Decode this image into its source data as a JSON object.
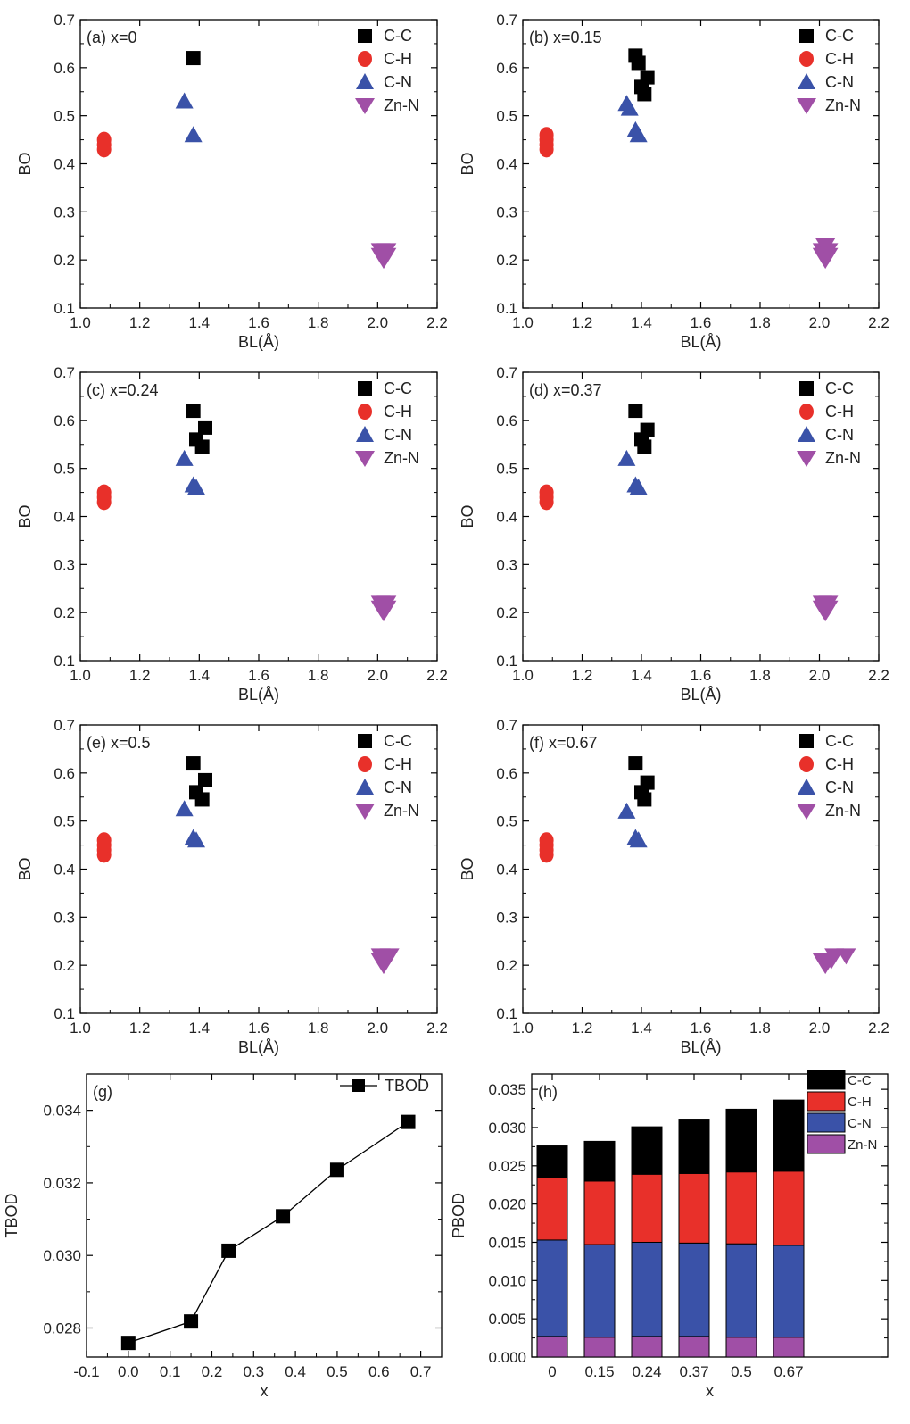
{
  "chart_data": [
    {
      "panel": "a",
      "type": "scatter",
      "label": "(a) x=0",
      "xlabel": "BL(Å)",
      "ylabel": "BO",
      "xlim": [
        1.0,
        2.2
      ],
      "ylim": [
        0.1,
        0.7
      ],
      "xticks": [
        "1.0",
        "1.2",
        "1.4",
        "1.6",
        "1.8",
        "2.0",
        "2.2"
      ],
      "yticks": [
        "0.1",
        "0.2",
        "0.3",
        "0.4",
        "0.5",
        "0.6",
        "0.7"
      ],
      "legend": "top-right",
      "series": [
        {
          "name": "C-C",
          "color": "#000000",
          "marker": "square",
          "points": [
            [
              1.38,
              0.62
            ]
          ]
        },
        {
          "name": "C-H",
          "color": "#e8302a",
          "marker": "circle",
          "points": [
            [
              1.08,
              0.43
            ],
            [
              1.08,
              0.44
            ],
            [
              1.08,
              0.45
            ]
          ]
        },
        {
          "name": "C-N",
          "color": "#3a52a8",
          "marker": "triangle-up",
          "points": [
            [
              1.35,
              0.53
            ],
            [
              1.38,
              0.46
            ]
          ]
        },
        {
          "name": "Zn-N",
          "color": "#a04fa6",
          "marker": "triangle-down",
          "points": [
            [
              2.01,
              0.21
            ],
            [
              2.02,
              0.21
            ],
            [
              2.03,
              0.21
            ],
            [
              2.01,
              0.22
            ],
            [
              2.03,
              0.22
            ],
            [
              2.02,
              0.2
            ]
          ]
        }
      ]
    },
    {
      "panel": "b",
      "type": "scatter",
      "label": "(b) x=0.15",
      "xlabel": "BL(Å)",
      "ylabel": "BO",
      "xlim": [
        1.0,
        2.2
      ],
      "ylim": [
        0.1,
        0.7
      ],
      "xticks": [
        "1.0",
        "1.2",
        "1.4",
        "1.6",
        "1.8",
        "2.0",
        "2.2"
      ],
      "yticks": [
        "0.1",
        "0.2",
        "0.3",
        "0.4",
        "0.5",
        "0.6",
        "0.7"
      ],
      "legend": "top-right",
      "series": [
        {
          "name": "C-C",
          "color": "#000000",
          "marker": "square",
          "points": [
            [
              1.38,
              0.625
            ],
            [
              1.39,
              0.61
            ],
            [
              1.4,
              0.56
            ],
            [
              1.41,
              0.545
            ],
            [
              1.42,
              0.58
            ]
          ]
        },
        {
          "name": "C-H",
          "color": "#e8302a",
          "marker": "circle",
          "points": [
            [
              1.08,
              0.43
            ],
            [
              1.08,
              0.44
            ],
            [
              1.08,
              0.45
            ],
            [
              1.08,
              0.46
            ]
          ]
        },
        {
          "name": "C-N",
          "color": "#3a52a8",
          "marker": "triangle-up",
          "points": [
            [
              1.35,
              0.525
            ],
            [
              1.36,
              0.515
            ],
            [
              1.38,
              0.47
            ],
            [
              1.39,
              0.46
            ]
          ]
        },
        {
          "name": "Zn-N",
          "color": "#a04fa6",
          "marker": "triangle-down",
          "points": [
            [
              2.01,
              0.21
            ],
            [
              2.02,
              0.21
            ],
            [
              2.03,
              0.21
            ],
            [
              2.01,
              0.22
            ],
            [
              2.02,
              0.23
            ],
            [
              2.03,
              0.22
            ],
            [
              2.02,
              0.2
            ]
          ]
        }
      ]
    },
    {
      "panel": "c",
      "type": "scatter",
      "label": "(c) x=0.24",
      "xlabel": "BL(Å)",
      "ylabel": "BO",
      "xlim": [
        1.0,
        2.2
      ],
      "ylim": [
        0.1,
        0.7
      ],
      "xticks": [
        "1.0",
        "1.2",
        "1.4",
        "1.6",
        "1.8",
        "2.0",
        "2.2"
      ],
      "yticks": [
        "0.1",
        "0.2",
        "0.3",
        "0.4",
        "0.5",
        "0.6",
        "0.7"
      ],
      "legend": "top-right",
      "series": [
        {
          "name": "C-C",
          "color": "#000000",
          "marker": "square",
          "points": [
            [
              1.38,
              0.62
            ],
            [
              1.39,
              0.56
            ],
            [
              1.41,
              0.545
            ],
            [
              1.42,
              0.585
            ]
          ]
        },
        {
          "name": "C-H",
          "color": "#e8302a",
          "marker": "circle",
          "points": [
            [
              1.08,
              0.43
            ],
            [
              1.08,
              0.44
            ],
            [
              1.08,
              0.45
            ]
          ]
        },
        {
          "name": "C-N",
          "color": "#3a52a8",
          "marker": "triangle-up",
          "points": [
            [
              1.35,
              0.52
            ],
            [
              1.38,
              0.465
            ],
            [
              1.39,
              0.46
            ]
          ]
        },
        {
          "name": "Zn-N",
          "color": "#a04fa6",
          "marker": "triangle-down",
          "points": [
            [
              2.01,
              0.21
            ],
            [
              2.02,
              0.21
            ],
            [
              2.03,
              0.21
            ],
            [
              2.01,
              0.22
            ],
            [
              2.03,
              0.22
            ],
            [
              2.02,
              0.2
            ]
          ]
        }
      ]
    },
    {
      "panel": "d",
      "type": "scatter",
      "label": "(d) x=0.37",
      "xlabel": "BL(Å)",
      "ylabel": "BO",
      "xlim": [
        1.0,
        2.2
      ],
      "ylim": [
        0.1,
        0.7
      ],
      "xticks": [
        "1.0",
        "1.2",
        "1.4",
        "1.6",
        "1.8",
        "2.0",
        "2.2"
      ],
      "yticks": [
        "0.1",
        "0.2",
        "0.3",
        "0.4",
        "0.5",
        "0.6",
        "0.7"
      ],
      "legend": "top-right",
      "series": [
        {
          "name": "C-C",
          "color": "#000000",
          "marker": "square",
          "points": [
            [
              1.38,
              0.62
            ],
            [
              1.4,
              0.56
            ],
            [
              1.41,
              0.545
            ],
            [
              1.42,
              0.58
            ]
          ]
        },
        {
          "name": "C-H",
          "color": "#e8302a",
          "marker": "circle",
          "points": [
            [
              1.08,
              0.43
            ],
            [
              1.08,
              0.44
            ],
            [
              1.08,
              0.45
            ]
          ]
        },
        {
          "name": "C-N",
          "color": "#3a52a8",
          "marker": "triangle-up",
          "points": [
            [
              1.35,
              0.52
            ],
            [
              1.38,
              0.465
            ],
            [
              1.39,
              0.46
            ]
          ]
        },
        {
          "name": "Zn-N",
          "color": "#a04fa6",
          "marker": "triangle-down",
          "points": [
            [
              2.01,
              0.21
            ],
            [
              2.02,
              0.21
            ],
            [
              2.03,
              0.21
            ],
            [
              2.01,
              0.22
            ],
            [
              2.03,
              0.22
            ],
            [
              2.02,
              0.2
            ]
          ]
        }
      ]
    },
    {
      "panel": "e",
      "type": "scatter",
      "label": "(e) x=0.5",
      "xlabel": "BL(Å)",
      "ylabel": "BO",
      "xlim": [
        1.0,
        2.2
      ],
      "ylim": [
        0.1,
        0.7
      ],
      "xticks": [
        "1.0",
        "1.2",
        "1.4",
        "1.6",
        "1.8",
        "2.0",
        "2.2"
      ],
      "yticks": [
        "0.1",
        "0.2",
        "0.3",
        "0.4",
        "0.5",
        "0.6",
        "0.7"
      ],
      "legend": "top-right",
      "series": [
        {
          "name": "C-C",
          "color": "#000000",
          "marker": "square",
          "points": [
            [
              1.38,
              0.62
            ],
            [
              1.39,
              0.56
            ],
            [
              1.41,
              0.545
            ],
            [
              1.42,
              0.585
            ]
          ]
        },
        {
          "name": "C-H",
          "color": "#e8302a",
          "marker": "circle",
          "points": [
            [
              1.08,
              0.43
            ],
            [
              1.08,
              0.44
            ],
            [
              1.08,
              0.45
            ],
            [
              1.08,
              0.46
            ]
          ]
        },
        {
          "name": "C-N",
          "color": "#3a52a8",
          "marker": "triangle-up",
          "points": [
            [
              1.35,
              0.525
            ],
            [
              1.38,
              0.465
            ],
            [
              1.39,
              0.46
            ]
          ]
        },
        {
          "name": "Zn-N",
          "color": "#a04fa6",
          "marker": "triangle-down",
          "points": [
            [
              2.01,
              0.21
            ],
            [
              2.02,
              0.21
            ],
            [
              2.03,
              0.21
            ],
            [
              2.04,
              0.22
            ],
            [
              2.01,
              0.22
            ],
            [
              2.02,
              0.2
            ]
          ]
        }
      ]
    },
    {
      "panel": "f",
      "type": "scatter",
      "label": "(f) x=0.67",
      "xlabel": "BL(Å)",
      "ylabel": "BO",
      "xlim": [
        1.0,
        2.2
      ],
      "ylim": [
        0.1,
        0.7
      ],
      "xticks": [
        "1.0",
        "1.2",
        "1.4",
        "1.6",
        "1.8",
        "2.0",
        "2.2"
      ],
      "yticks": [
        "0.1",
        "0.2",
        "0.3",
        "0.4",
        "0.5",
        "0.6",
        "0.7"
      ],
      "legend": "top-right",
      "series": [
        {
          "name": "C-C",
          "color": "#000000",
          "marker": "square",
          "points": [
            [
              1.38,
              0.62
            ],
            [
              1.4,
              0.56
            ],
            [
              1.41,
              0.545
            ],
            [
              1.42,
              0.58
            ]
          ]
        },
        {
          "name": "C-H",
          "color": "#e8302a",
          "marker": "circle",
          "points": [
            [
              1.08,
              0.43
            ],
            [
              1.08,
              0.44
            ],
            [
              1.08,
              0.45
            ],
            [
              1.08,
              0.46
            ]
          ]
        },
        {
          "name": "C-N",
          "color": "#3a52a8",
          "marker": "triangle-up",
          "points": [
            [
              1.35,
              0.52
            ],
            [
              1.38,
              0.465
            ],
            [
              1.39,
              0.46
            ]
          ]
        },
        {
          "name": "Zn-N",
          "color": "#a04fa6",
          "marker": "triangle-down",
          "points": [
            [
              2.01,
              0.21
            ],
            [
              2.03,
              0.21
            ],
            [
              2.05,
              0.22
            ],
            [
              2.02,
              0.2
            ],
            [
              2.09,
              0.22
            ],
            [
              2.04,
              0.21
            ]
          ]
        }
      ]
    },
    {
      "panel": "g",
      "type": "line",
      "label": "(g)",
      "xlabel": "x",
      "ylabel": "TBOD",
      "xlim": [
        -0.1,
        0.75
      ],
      "ylim": [
        0.0272,
        0.035
      ],
      "xticks": [
        "-0.1",
        "0.0",
        "0.1",
        "0.2",
        "0.3",
        "0.4",
        "0.5",
        "0.6",
        "0.7"
      ],
      "yticks": [
        "0.028",
        "0.030",
        "0.032",
        "0.034"
      ],
      "legend": "top-right",
      "series": [
        {
          "name": "TBOD",
          "color": "#000000",
          "marker": "square",
          "x": [
            0.0,
            0.15,
            0.24,
            0.37,
            0.5,
            0.67
          ],
          "y": [
            0.02759,
            0.02818,
            0.03013,
            0.03108,
            0.03236,
            0.03368
          ]
        }
      ]
    },
    {
      "panel": "h",
      "type": "bar",
      "label": "(h)",
      "xlabel": "x",
      "ylabel": "PBOD",
      "ylim": [
        0.0,
        0.037
      ],
      "categories": [
        "0",
        "0.15",
        "0.24",
        "0.37",
        "0.5",
        "0.67"
      ],
      "yticks": [
        "0.000",
        "0.005",
        "0.010",
        "0.015",
        "0.020",
        "0.025",
        "0.030",
        "0.035"
      ],
      "stacked": true,
      "legend": "top-right",
      "series": [
        {
          "name": "Zn-N",
          "color": "#a04fa6",
          "values": [
            0.0027,
            0.0026,
            0.0027,
            0.0027,
            0.0026,
            0.0026
          ]
        },
        {
          "name": "C-N",
          "color": "#3a52a8",
          "values": [
            0.0126,
            0.0121,
            0.0123,
            0.0122,
            0.0122,
            0.012
          ]
        },
        {
          "name": "C-H",
          "color": "#e8302a",
          "values": [
            0.0082,
            0.0083,
            0.0089,
            0.0091,
            0.0094,
            0.0097
          ]
        },
        {
          "name": "C-C",
          "color": "#000000",
          "values": [
            0.0041,
            0.0052,
            0.0062,
            0.0071,
            0.0082,
            0.0093
          ]
        }
      ]
    }
  ]
}
